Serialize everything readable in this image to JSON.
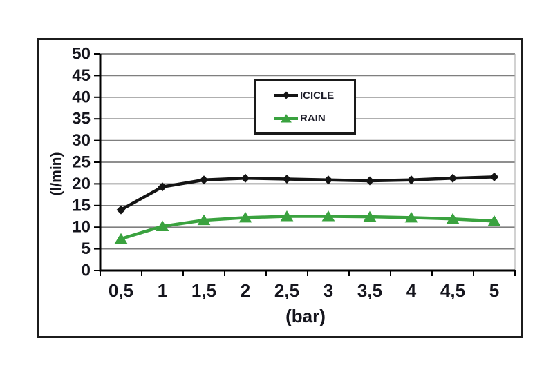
{
  "chart_data": {
    "type": "line",
    "title": "",
    "xlabel": "(bar)",
    "ylabel": "(l/min)",
    "x_categories": [
      "0,5",
      "1",
      "1,5",
      "2",
      "2,5",
      "3",
      "3,5",
      "4",
      "4,5",
      "5"
    ],
    "ylim": [
      0,
      50
    ],
    "ytick_step": 5,
    "ytick_labels": [
      "0",
      "5",
      "10",
      "15",
      "20",
      "25",
      "30",
      "35",
      "40",
      "45",
      "50"
    ],
    "grid": "horizontal",
    "legend_position": "inside-top-center",
    "series": [
      {
        "name": "ICICLE",
        "color": "#141414",
        "marker": "diamond",
        "values": [
          14,
          19.3,
          20.9,
          21.3,
          21.1,
          20.9,
          20.7,
          20.9,
          21.3,
          21.6
        ]
      },
      {
        "name": "RAIN",
        "color": "#3aa23f",
        "marker": "triangle",
        "values": [
          7.3,
          10.2,
          11.6,
          12.2,
          12.5,
          12.5,
          12.4,
          12.2,
          11.9,
          11.4
        ]
      }
    ],
    "colors": {
      "gridline": "#7f7f7f",
      "axis": "#000000",
      "tick_text": "#15151d",
      "frame": "#1c1c1c",
      "plot_border": "#b3b3b3",
      "background": "#ffffff"
    }
  }
}
